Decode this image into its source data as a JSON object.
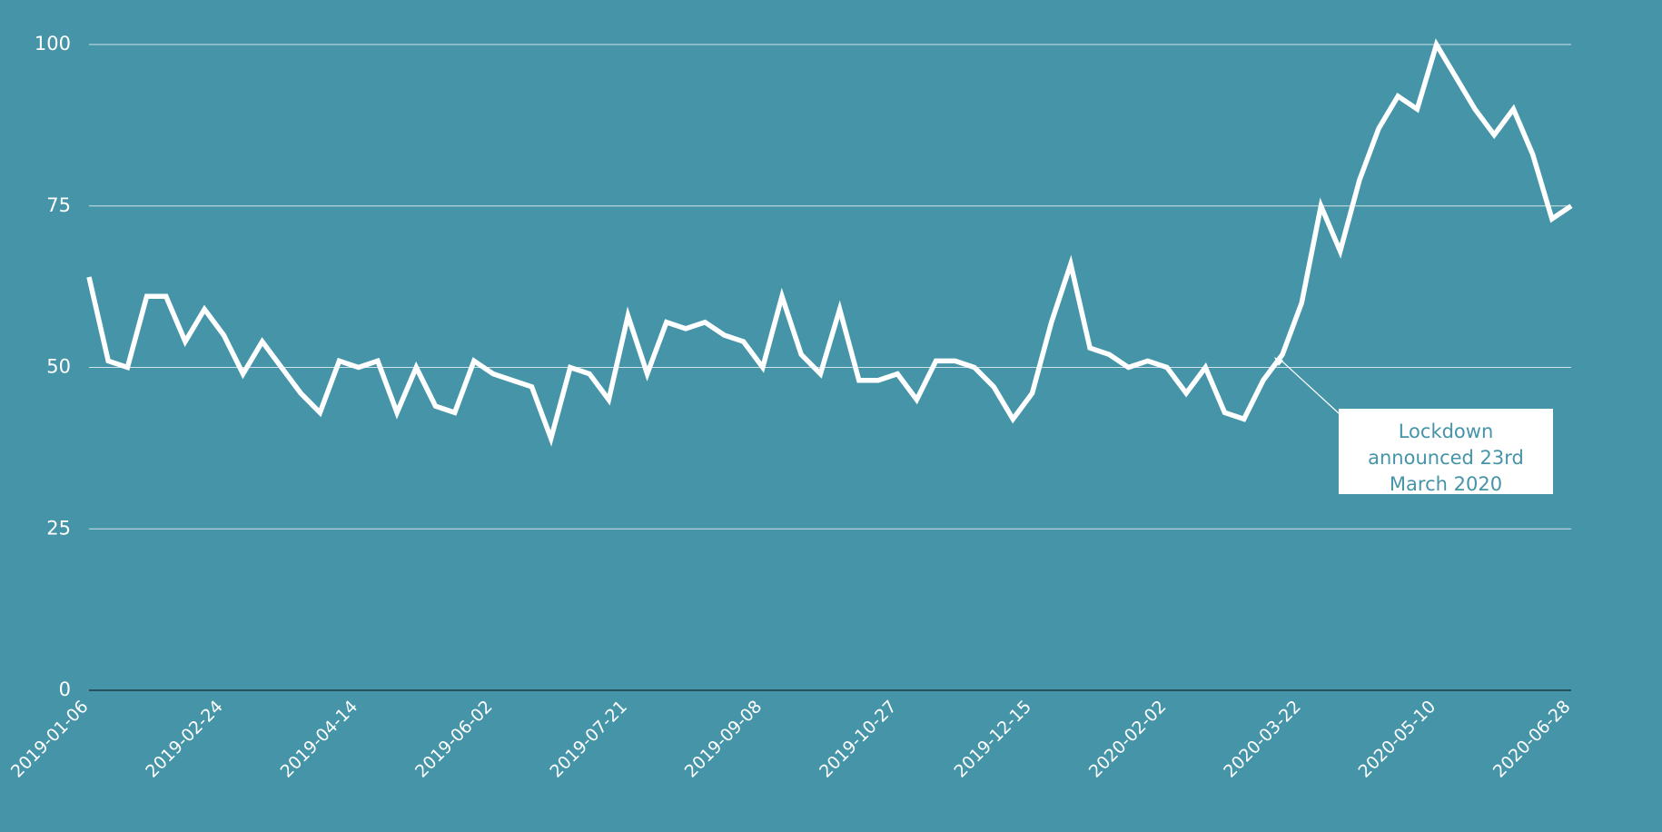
{
  "colors": {
    "background": "#4694a8",
    "line": "#ffffff",
    "gridline": "#cfe2e8",
    "baseline": "#1f3b44",
    "annotation_box": "#ffffff",
    "annotation_text": "#4694a8"
  },
  "chart_data": {
    "type": "line",
    "title": "",
    "xlabel": "",
    "ylabel": "",
    "ylim": [
      0,
      100
    ],
    "yticks": [
      0,
      25,
      50,
      75,
      100
    ],
    "xtick_labels": [
      "2019-01-06",
      "2019-02-24",
      "2019-04-14",
      "2019-06-02",
      "2019-07-21",
      "2019-09-08",
      "2019-10-27",
      "2019-12-15",
      "2020-02-02",
      "2020-03-22",
      "2020-05-10",
      "2020-06-28"
    ],
    "grid": true,
    "legend": "none",
    "start_date": "2019-01-06",
    "interval_days": 7,
    "values": [
      64,
      51,
      50,
      61,
      61,
      54,
      59,
      55,
      49,
      54,
      50,
      46,
      43,
      51,
      50,
      51,
      43,
      50,
      44,
      43,
      51,
      49,
      48,
      47,
      39,
      50,
      49,
      45,
      58,
      49,
      57,
      56,
      57,
      55,
      54,
      50,
      61,
      52,
      49,
      59,
      48,
      48,
      49,
      45,
      51,
      51,
      50,
      47,
      42,
      46,
      57,
      66,
      53,
      52,
      50,
      51,
      50,
      46,
      50,
      43,
      42,
      48,
      52,
      60,
      75,
      68,
      79,
      87,
      92,
      90,
      100,
      95,
      90,
      86,
      90,
      83,
      73,
      75
    ],
    "annotations": [
      {
        "text_lines": [
          "Lockdown",
          "announced 23rd",
          "March 2020"
        ],
        "target_index": 62
      }
    ]
  }
}
